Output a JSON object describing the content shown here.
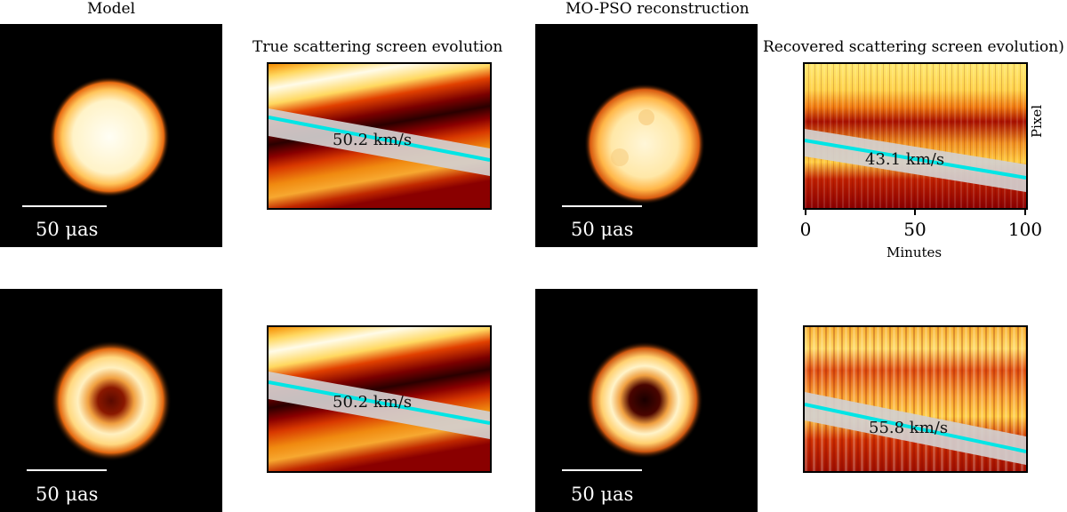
{
  "columns": {
    "model": "Model",
    "true_screen": "True scattering screen evolution",
    "reconstruction": "MO-PSO reconstruction",
    "recovered_screen": "Recovered scattering screen evolution)"
  },
  "rows": [
    {
      "model_scale": "50 μas",
      "true_speed": "50.2 km/s",
      "recon_scale": "50 μas",
      "recovered_speed": "43.1 km/s"
    },
    {
      "model_scale": "50 μas",
      "true_speed": "50.2 km/s",
      "recon_scale": "50 μas",
      "recovered_speed": "55.8 km/s"
    }
  ],
  "axes": {
    "x_label": "Minutes",
    "y_label": "Pixel",
    "x_ticks": [
      "0",
      "50",
      "100"
    ]
  },
  "colors": {
    "velocity_line": "#00e5e5",
    "band": "#d3cfcf",
    "colormap": "afmhot"
  }
}
